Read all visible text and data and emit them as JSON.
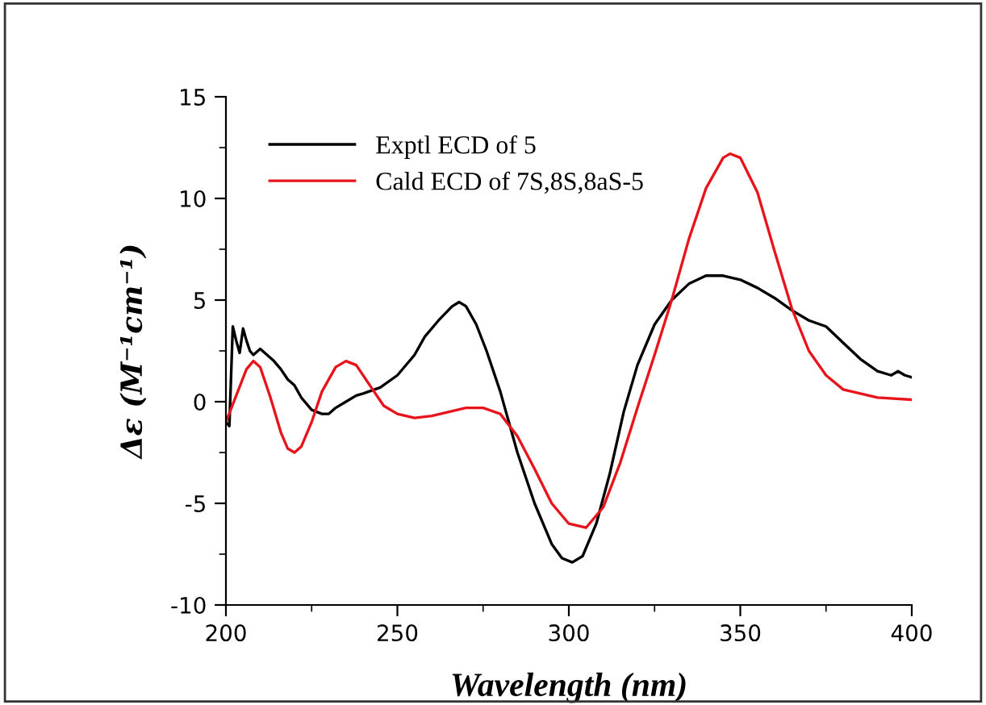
{
  "chart_data": {
    "type": "line",
    "xlabel": "Wavelength (nm)",
    "ylabel": "Δε (M⁻¹cm⁻¹)",
    "xlim": [
      200,
      400
    ],
    "ylim": [
      -10,
      15
    ],
    "xticks": [
      200,
      250,
      300,
      350,
      400
    ],
    "yticks": [
      -10,
      -5,
      0,
      5,
      10,
      15
    ],
    "grid": false,
    "legend": "top left",
    "marker": "none",
    "line_style": "solid",
    "series": [
      {
        "name": "Exptl ECD of 5",
        "color": "#000000",
        "x": [
          200,
          201,
          202,
          203,
          204,
          205,
          206,
          207,
          208,
          210,
          212,
          214,
          216,
          218,
          220,
          222,
          225,
          228,
          230,
          232,
          235,
          238,
          240,
          245,
          250,
          255,
          258,
          262,
          266,
          268,
          270,
          273,
          276,
          280,
          285,
          290,
          295,
          298,
          301,
          304,
          308,
          312,
          316,
          320,
          325,
          330,
          335,
          340,
          345,
          350,
          355,
          360,
          365,
          370,
          375,
          380,
          385,
          390,
          394,
          396,
          398,
          400
        ],
        "values": [
          -1.0,
          -1.2,
          3.7,
          3.0,
          2.4,
          3.6,
          3.0,
          2.5,
          2.3,
          2.6,
          2.3,
          2.0,
          1.6,
          1.1,
          0.8,
          0.2,
          -0.4,
          -0.6,
          -0.6,
          -0.3,
          0,
          0.3,
          0.4,
          0.7,
          1.3,
          2.3,
          3.2,
          4.0,
          4.7,
          4.9,
          4.7,
          3.8,
          2.5,
          0.5,
          -2.5,
          -5.0,
          -7.0,
          -7.7,
          -7.9,
          -7.6,
          -6.0,
          -3.5,
          -0.5,
          1.8,
          3.8,
          5.0,
          5.8,
          6.2,
          6.2,
          6.0,
          5.6,
          5.1,
          4.5,
          4.0,
          3.7,
          2.9,
          2.1,
          1.5,
          1.3,
          1.5,
          1.3,
          1.2
        ]
      },
      {
        "name": "Cald ECD of 7S,8S,8aS-5",
        "color": "#e8141c",
        "x": [
          200,
          203,
          206,
          208,
          210,
          213,
          216,
          218,
          220,
          222,
          225,
          228,
          232,
          235,
          238,
          242,
          246,
          250,
          255,
          260,
          265,
          270,
          275,
          280,
          285,
          290,
          295,
          300,
          305,
          310,
          315,
          320,
          325,
          330,
          335,
          340,
          345,
          347,
          350,
          355,
          360,
          365,
          370,
          375,
          380,
          390,
          400
        ],
        "values": [
          -1.0,
          0.3,
          1.6,
          2.0,
          1.7,
          0.2,
          -1.5,
          -2.3,
          -2.5,
          -2.2,
          -1.0,
          0.5,
          1.7,
          2.0,
          1.8,
          0.8,
          -0.2,
          -0.6,
          -0.8,
          -0.7,
          -0.5,
          -0.3,
          -0.3,
          -0.6,
          -1.7,
          -3.3,
          -5.0,
          -6.0,
          -6.2,
          -5.2,
          -3.0,
          -0.3,
          2.3,
          5.0,
          8.0,
          10.5,
          12.0,
          12.2,
          12.0,
          10.3,
          7.4,
          4.6,
          2.5,
          1.3,
          0.6,
          0.2,
          0.1
        ]
      }
    ]
  }
}
